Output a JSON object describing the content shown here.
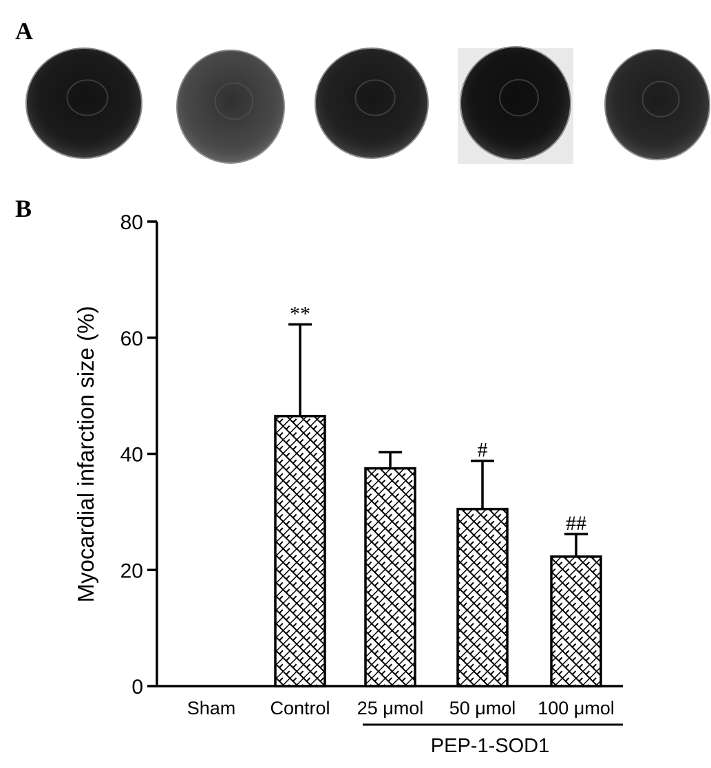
{
  "panels": {
    "a": "A",
    "b": "B"
  },
  "heart_sections": [
    {
      "name": "sham",
      "tone": "#1c1c1c"
    },
    {
      "name": "control",
      "tone": "#4a4a4a"
    },
    {
      "name": "pep1-sod1-25",
      "tone": "#222222"
    },
    {
      "name": "pep1-sod1-50",
      "tone": "#151515"
    },
    {
      "name": "pep1-sod1-100",
      "tone": "#2a2a2a"
    }
  ],
  "chart_data": {
    "type": "bar",
    "categories": [
      "Sham",
      "Control",
      "25 μmol",
      "50 μmol",
      "100 μmol"
    ],
    "values": [
      0,
      46.5,
      37.5,
      30.5,
      22.3
    ],
    "errors": [
      0,
      15.8,
      2.8,
      8.3,
      3.9
    ],
    "annotations": [
      "",
      "**",
      "",
      "#",
      "##"
    ],
    "ylabel": "Myocardial infarction size (%)",
    "ylim": [
      0,
      80
    ],
    "yticks": [
      0,
      20,
      40,
      60,
      80
    ],
    "group_label": "PEP-1-SOD1",
    "group_categories": [
      "25 μmol",
      "50 μmol",
      "100 μmol"
    ],
    "bar_fill": "crosshatch",
    "grid": false
  }
}
